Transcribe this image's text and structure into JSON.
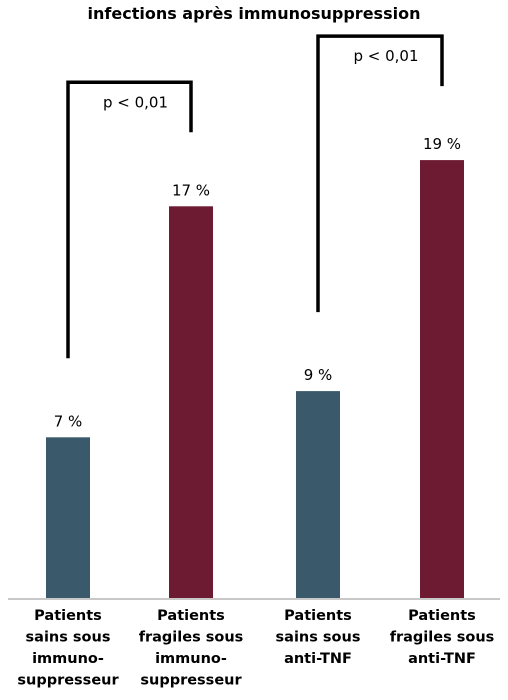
{
  "chart_data": {
    "type": "bar",
    "title": "infections après immunosuppression",
    "categories": [
      [
        "Patients",
        "sains sous",
        "immuno-",
        "suppresseur"
      ],
      [
        "Patients",
        "fragiles sous",
        "immuno-",
        "suppresseur"
      ],
      [
        "Patients",
        "sains sous",
        "anti-TNF"
      ],
      [
        "Patients",
        "fragiles sous",
        "anti-TNF"
      ]
    ],
    "values": [
      7,
      17,
      9,
      19
    ],
    "value_labels": [
      "7 %",
      "17 %",
      "9 %",
      "19 %"
    ],
    "bar_colors": [
      "#3a5a6b",
      "#6d1a33",
      "#3a5a6b",
      "#6d1a33"
    ],
    "ylim": [
      0,
      23.6
    ],
    "grid": false,
    "xlabel": "",
    "ylabel": "",
    "annotations": [
      {
        "type": "significance",
        "from": 0,
        "to": 1,
        "label": "p < 0,01"
      },
      {
        "type": "significance",
        "from": 2,
        "to": 3,
        "label": "p < 0,01"
      }
    ]
  }
}
